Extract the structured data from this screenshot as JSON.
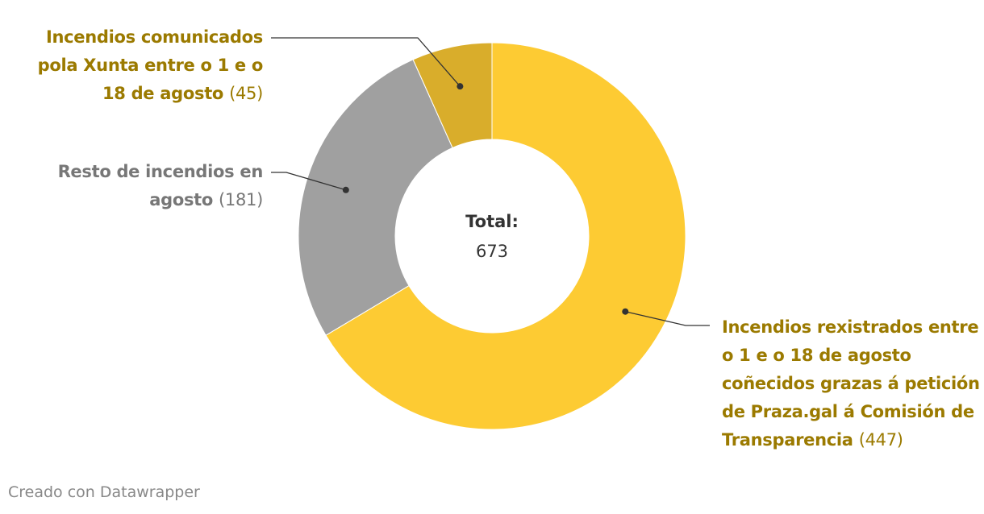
{
  "chart_data": {
    "type": "donut",
    "series": [
      {
        "name": "Incendios rexistrados entre o 1 e o 18 de agosto coñecidos grazas á petición de Praza.gal á Comisión de Transparencia",
        "color": "#fdcb33",
        "values": [
          447
        ],
        "value_labels": [
          "(447)"
        ]
      },
      {
        "name": "Resto de incendios en agosto",
        "color": "#a0a0a0",
        "values": [
          181
        ],
        "value_labels": [
          "(181)"
        ]
      },
      {
        "name": "Incendios comunicados pola Xunta entre o 1 e o 18 de agosto",
        "color": "#d9ad2b",
        "values": [
          45
        ],
        "value_labels": [
          "(45)"
        ]
      }
    ],
    "center_label": "Total:",
    "total": 673
  },
  "footer": "Creado con Datawrapper"
}
